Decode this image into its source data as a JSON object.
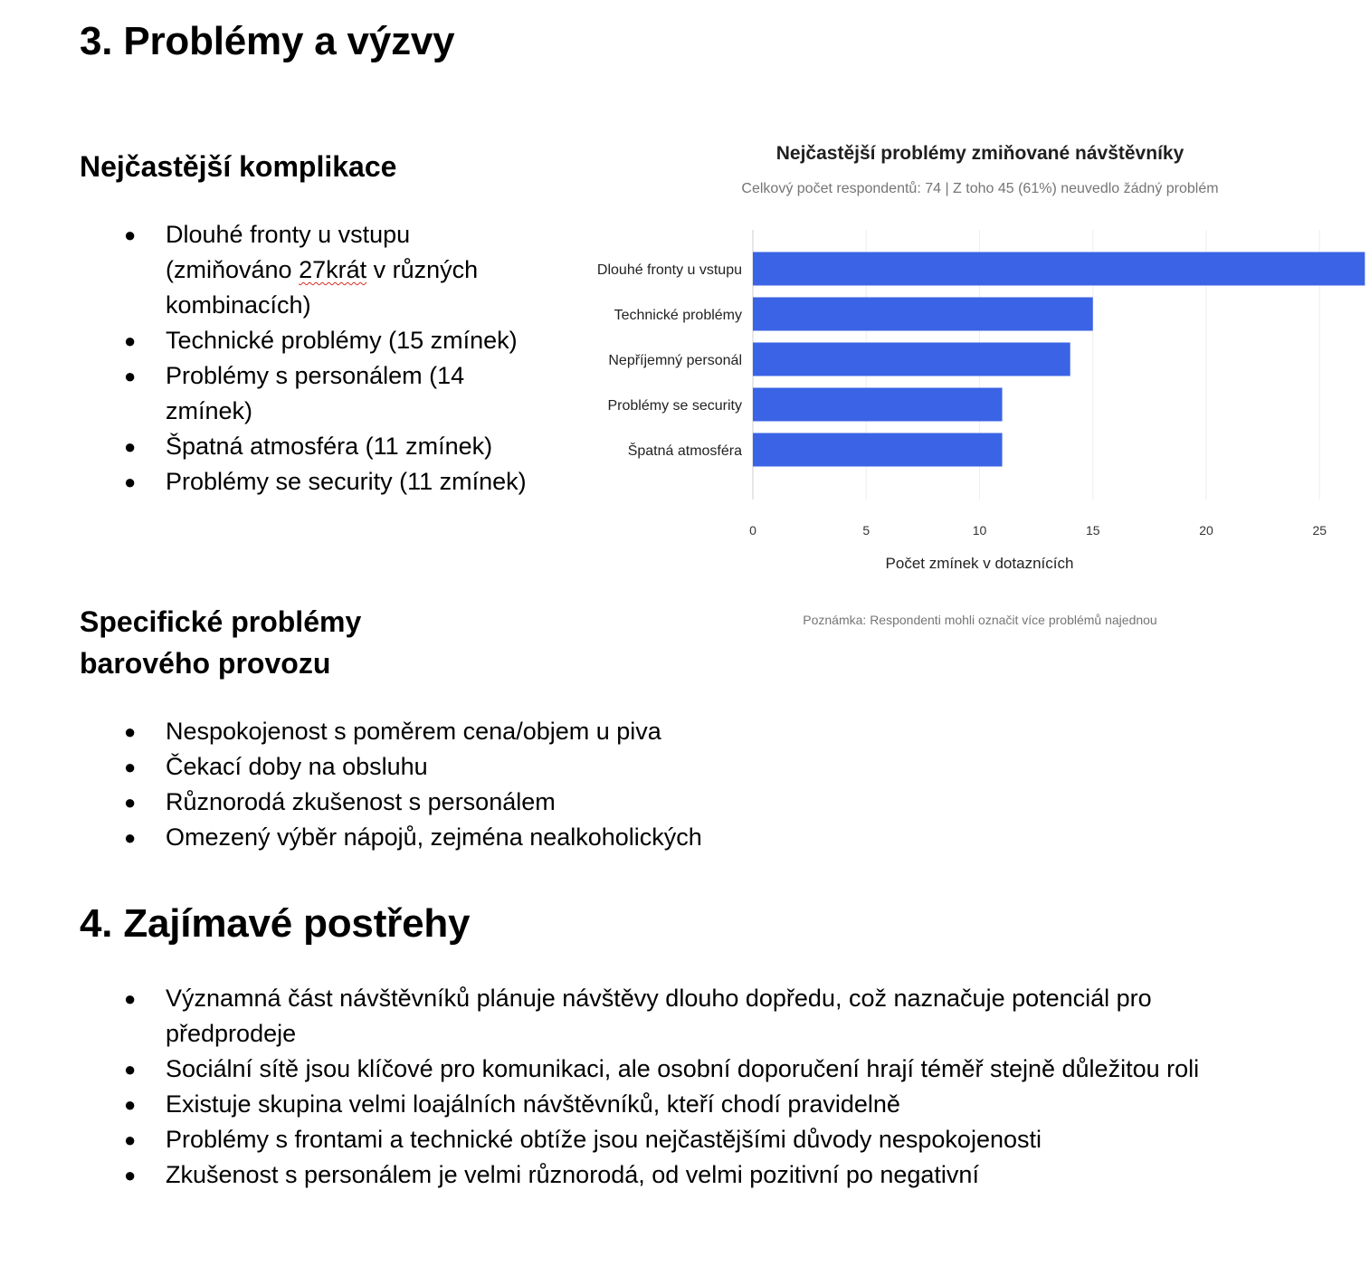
{
  "section3": {
    "title": "3. Problémy a výzvy",
    "complications": {
      "heading": "Nejčastější komplikace",
      "items": [
        {
          "pre": "Dlouhé fronty u vstupu (zmiňováno ",
          "flagged": "27krát",
          "post": " v různých kombinacích)"
        },
        {
          "text": "Technické problémy (15 zmínek)"
        },
        {
          "text": "Problémy s personálem (14 zmínek)"
        },
        {
          "text": "Špatná atmosféra (11 zmínek)"
        },
        {
          "text": "Problémy se security (11 zmínek)"
        }
      ]
    },
    "bar_problems": {
      "heading_line1": "Specifické problémy",
      "heading_line2": "barového provozu",
      "items": [
        "Nespokojenost s poměrem cena/objem u piva",
        "Čekací doby na obsluhu",
        "Různorodá zkušenost s personálem",
        "Omezený výběr nápojů, zejména nealkoholických"
      ]
    }
  },
  "section4": {
    "title": "4. Zajímavé postřehy",
    "items": [
      "Významná část návštěvníků plánuje návštěvy dlouho dopředu, což naznačuje potenciál pro předprodeje",
      "Sociální sítě jsou klíčové pro komunikaci, ale osobní doporučení hrají téměř stejně důležitou roli",
      "Existuje skupina velmi loajálních návštěvníků, kteří chodí pravidelně",
      "Problémy s frontami a technické obtíže jsou nejčastějšími důvody nespokojenosti",
      "Zkušenost s personálem je velmi různorodá, od velmi pozitivní po negativní"
    ]
  },
  "bullet_glyph": "●",
  "chart_data": {
    "type": "bar",
    "orientation": "horizontal",
    "title": "Nejčastější problémy zmiňované návštěvníky",
    "subtitle": "Celkový počet respondentů: 74 | Z toho 45 (61%) neuvedlo žádný problém",
    "categories": [
      "Dlouhé fronty u vstupu",
      "Technické problémy",
      "Nepříjemný personál",
      "Problémy se security",
      "Špatná atmosféra"
    ],
    "values": [
      27,
      15,
      14,
      11,
      11
    ],
    "xlabel": "Počet zmínek v dotaznících",
    "ylabel": "",
    "xlim": [
      0,
      27
    ],
    "xticks": [
      0,
      5,
      10,
      15,
      20,
      25
    ],
    "grid": true,
    "bar_color": "#3b63e6",
    "note": "Poznámka: Respondenti mohli označit více problémů najednou"
  }
}
